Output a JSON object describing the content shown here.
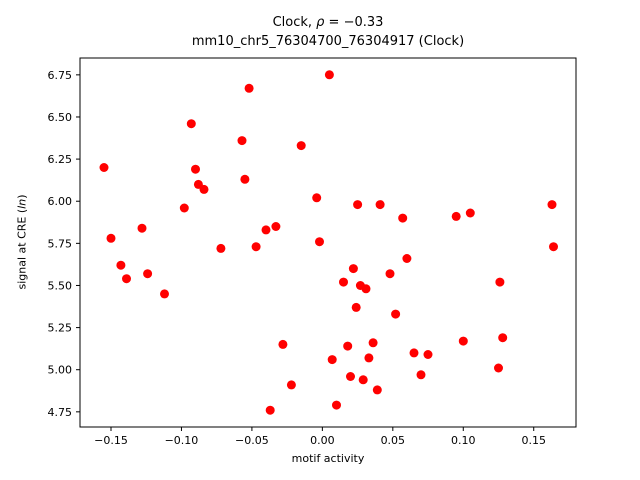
{
  "figure": {
    "title_prefix": "Clock, ",
    "title_rho": "ρ",
    "title_suffix": " = −0.33",
    "subtitle": "mm10_chr5_76304700_76304917 (Clock)",
    "xlabel": "motif activity",
    "ylabel_prefix": "signal at CRE (",
    "ylabel_italic": "ln",
    "ylabel_suffix": ")"
  },
  "chart_data": {
    "type": "scatter",
    "title": "Clock, ρ = −0.33",
    "subtitle": "mm10_chr5_76304700_76304917 (Clock)",
    "xlabel": "motif activity",
    "ylabel": "signal at CRE (ln)",
    "xlim": [
      -0.172,
      0.18
    ],
    "ylim": [
      4.66,
      6.85
    ],
    "xticks": [
      -0.15,
      -0.1,
      -0.05,
      0.0,
      0.05,
      0.1,
      0.15
    ],
    "xtick_labels": [
      "−0.15",
      "−0.10",
      "−0.05",
      "0.00",
      "0.05",
      "0.10",
      "0.15"
    ],
    "yticks": [
      4.75,
      5.0,
      5.25,
      5.5,
      5.75,
      6.0,
      6.25,
      6.5,
      6.75
    ],
    "ytick_labels": [
      "4.75",
      "5.00",
      "5.25",
      "5.50",
      "5.75",
      "6.00",
      "6.25",
      "6.50",
      "6.75"
    ],
    "grid": false,
    "legend": null,
    "marker_color": "#ff0000",
    "marker_radius": 4.5,
    "points": [
      [
        -0.155,
        6.2
      ],
      [
        -0.15,
        5.78
      ],
      [
        -0.143,
        5.62
      ],
      [
        -0.139,
        5.54
      ],
      [
        -0.128,
        5.84
      ],
      [
        -0.124,
        5.57
      ],
      [
        -0.112,
        5.45
      ],
      [
        -0.098,
        5.96
      ],
      [
        -0.093,
        6.46
      ],
      [
        -0.09,
        6.19
      ],
      [
        -0.088,
        6.1
      ],
      [
        -0.084,
        6.07
      ],
      [
        -0.072,
        5.72
      ],
      [
        -0.057,
        6.36
      ],
      [
        -0.055,
        6.13
      ],
      [
        -0.052,
        6.67
      ],
      [
        -0.047,
        5.73
      ],
      [
        -0.04,
        5.83
      ],
      [
        -0.037,
        4.76
      ],
      [
        -0.033,
        5.85
      ],
      [
        -0.028,
        5.15
      ],
      [
        -0.022,
        4.91
      ],
      [
        -0.015,
        6.33
      ],
      [
        -0.004,
        6.02
      ],
      [
        -0.002,
        5.76
      ],
      [
        0.005,
        6.75
      ],
      [
        0.007,
        5.06
      ],
      [
        0.01,
        4.79
      ],
      [
        0.015,
        5.52
      ],
      [
        0.018,
        5.14
      ],
      [
        0.02,
        4.96
      ],
      [
        0.022,
        5.6
      ],
      [
        0.024,
        5.37
      ],
      [
        0.025,
        5.98
      ],
      [
        0.027,
        5.5
      ],
      [
        0.029,
        4.94
      ],
      [
        0.031,
        5.48
      ],
      [
        0.033,
        5.07
      ],
      [
        0.036,
        5.16
      ],
      [
        0.039,
        4.88
      ],
      [
        0.041,
        5.98
      ],
      [
        0.048,
        5.57
      ],
      [
        0.052,
        5.33
      ],
      [
        0.057,
        5.9
      ],
      [
        0.06,
        5.66
      ],
      [
        0.065,
        5.1
      ],
      [
        0.07,
        4.97
      ],
      [
        0.075,
        5.09
      ],
      [
        0.095,
        5.91
      ],
      [
        0.1,
        5.17
      ],
      [
        0.105,
        5.93
      ],
      [
        0.125,
        5.01
      ],
      [
        0.126,
        5.52
      ],
      [
        0.128,
        5.19
      ],
      [
        0.163,
        5.98
      ],
      [
        0.164,
        5.73
      ]
    ]
  }
}
